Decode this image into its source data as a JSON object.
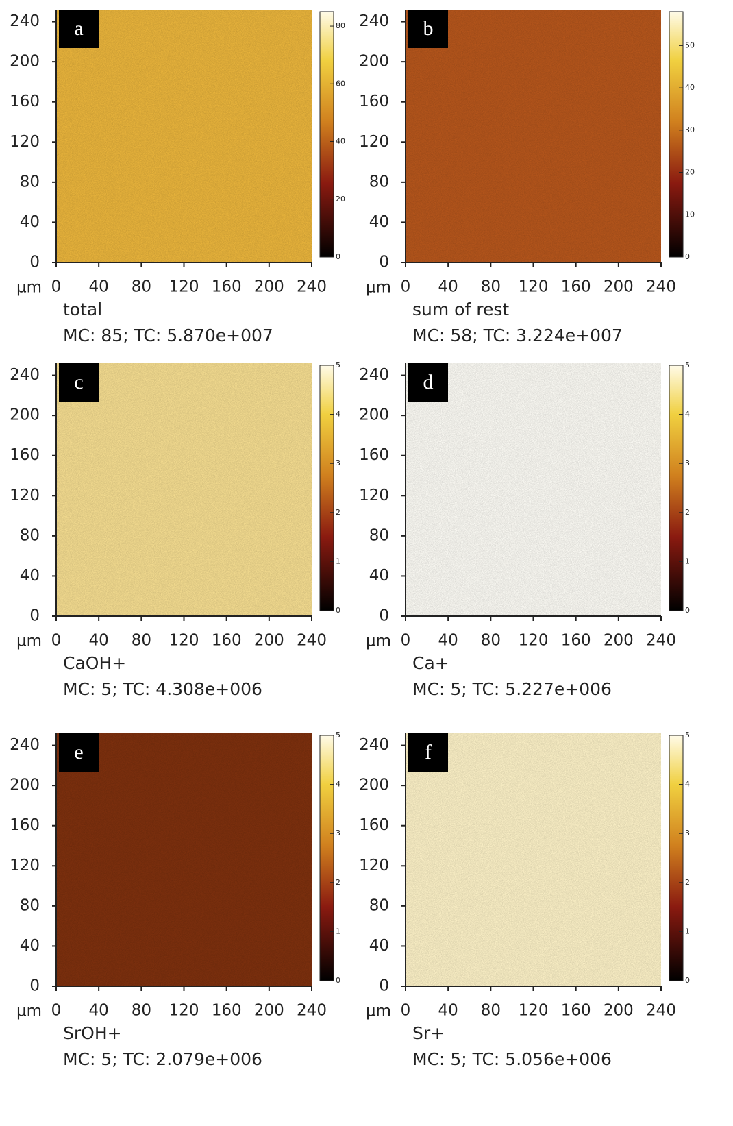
{
  "chart_data": [
    {
      "type": "image",
      "panel": "a",
      "x_unit": "µm",
      "name": "total",
      "stats": "MC:   85; TC: 5.870e+007",
      "color": "#e9b43c",
      "xlim": [
        0,
        240
      ],
      "ylim": [
        0,
        252
      ],
      "xticks": [
        0,
        40,
        80,
        120,
        160,
        200,
        240
      ],
      "yticks": [
        0,
        40,
        80,
        120,
        160,
        200,
        240
      ],
      "colorbar_lim": [
        0,
        85
      ],
      "colorbar_ticks": [
        0,
        20,
        40,
        60,
        80
      ]
    },
    {
      "type": "image",
      "panel": "b",
      "x_unit": "µm",
      "name": "sum of rest",
      "stats": "MC:   58; TC: 3.224e+007",
      "color": "#b5561c",
      "xlim": [
        0,
        240
      ],
      "ylim": [
        0,
        252
      ],
      "xticks": [
        0,
        40,
        80,
        120,
        160,
        200,
        240
      ],
      "yticks": [
        0,
        40,
        80,
        120,
        160,
        200,
        240
      ],
      "colorbar_lim": [
        0,
        58
      ],
      "colorbar_ticks": [
        0,
        10,
        20,
        30,
        40,
        50
      ]
    },
    {
      "type": "image",
      "panel": "c",
      "x_unit": "µm",
      "name": "CaOH+",
      "stats": "MC:   5; TC: 4.308e+006",
      "color": "#f4dc90",
      "xlim": [
        0,
        240
      ],
      "ylim": [
        0,
        252
      ],
      "xticks": [
        0,
        40,
        80,
        120,
        160,
        200,
        240
      ],
      "yticks": [
        0,
        40,
        80,
        120,
        160,
        200,
        240
      ],
      "colorbar_lim": [
        0,
        5
      ],
      "colorbar_ticks": [
        0,
        1,
        2,
        3,
        4,
        5
      ]
    },
    {
      "type": "image",
      "panel": "d",
      "x_unit": "µm",
      "name": "Ca+",
      "stats": "MC:   5; TC: 5.227e+006",
      "color": "#fbfaf4",
      "xlim": [
        0,
        240
      ],
      "ylim": [
        0,
        252
      ],
      "xticks": [
        0,
        40,
        80,
        120,
        160,
        200,
        240
      ],
      "yticks": [
        0,
        40,
        80,
        120,
        160,
        200,
        240
      ],
      "colorbar_lim": [
        0,
        5
      ],
      "colorbar_ticks": [
        0,
        1,
        2,
        3,
        4,
        5
      ]
    },
    {
      "type": "image",
      "panel": "e",
      "x_unit": "µm",
      "name": "SrOH+",
      "stats": "MC:   5; TC: 2.079e+006",
      "color": "#7d300e",
      "xlim": [
        0,
        240
      ],
      "ylim": [
        0,
        252
      ],
      "xticks": [
        0,
        40,
        80,
        120,
        160,
        200,
        240
      ],
      "yticks": [
        0,
        40,
        80,
        120,
        160,
        200,
        240
      ],
      "colorbar_lim": [
        0,
        5
      ],
      "colorbar_ticks": [
        0,
        1,
        2,
        3,
        4,
        5
      ]
    },
    {
      "type": "image",
      "panel": "f",
      "x_unit": "µm",
      "name": "Sr+",
      "stats": "MC:   5; TC: 5.056e+006",
      "color": "#fbf0c6",
      "xlim": [
        0,
        240
      ],
      "ylim": [
        0,
        252
      ],
      "xticks": [
        0,
        40,
        80,
        120,
        160,
        200,
        240
      ],
      "yticks": [
        0,
        40,
        80,
        120,
        160,
        200,
        240
      ],
      "colorbar_lim": [
        0,
        5
      ],
      "colorbar_ticks": [
        0,
        1,
        2,
        3,
        4,
        5
      ]
    }
  ]
}
